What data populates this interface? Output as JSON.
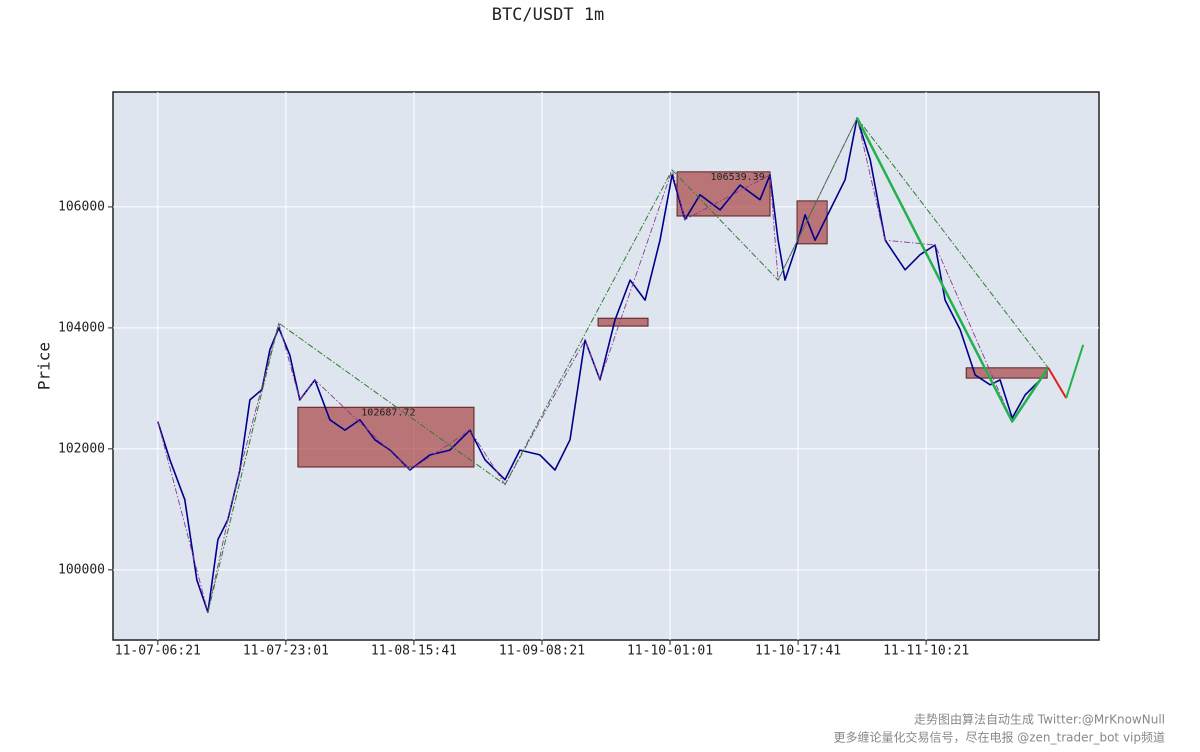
{
  "chart_data": {
    "type": "line",
    "title": "BTC/USDT 1m",
    "y_label": "Price",
    "xlim": [
      -350,
      7350
    ],
    "ylim": [
      98840,
      107900
    ],
    "xticks": [
      {
        "value": 0,
        "label": "11-07-06:21"
      },
      {
        "value": 1000,
        "label": "11-07-23:01"
      },
      {
        "value": 2000,
        "label": "11-08-15:41"
      },
      {
        "value": 3000,
        "label": "11-09-08:21"
      },
      {
        "value": 4000,
        "label": "11-10-01:01"
      },
      {
        "value": 5000,
        "label": "11-10-17:41"
      },
      {
        "value": 6000,
        "label": "11-11-10:21"
      }
    ],
    "yticks": [
      100000,
      102000,
      104000,
      106000
    ],
    "grid": true,
    "series": [
      {
        "color": "#00008b",
        "style": "solid",
        "width": 1.6,
        "x": [
          0,
          94,
          211,
          305,
          391,
          469,
          547,
          641,
          719,
          813,
          875,
          945,
          1031,
          1109,
          1227,
          1344,
          1461,
          1578,
          1695,
          1813,
          1969,
          2125,
          2281,
          2438,
          2555,
          2711,
          2828,
          2984,
          3102,
          3219,
          3336,
          3453,
          3570,
          3688,
          3805,
          3922,
          4016,
          4117,
          4234,
          4391,
          4547,
          4703,
          4781,
          4844,
          4898,
          4977,
          5055,
          5133,
          5250,
          5367,
          5461,
          5563,
          5680,
          5836,
          5953,
          6070,
          6148,
          6266,
          6383,
          6500,
          6578,
          6672,
          6773,
          6891,
          6953
        ],
        "values": [
          102450,
          101820,
          101160,
          99830,
          99300,
          100500,
          100830,
          101650,
          102810,
          102980,
          103640,
          104000,
          103550,
          102810,
          103140,
          102480,
          102310,
          102480,
          102150,
          101980,
          101650,
          101900,
          101980,
          102310,
          101820,
          101490,
          101980,
          101900,
          101650,
          102150,
          103800,
          103140,
          104130,
          104790,
          104460,
          105450,
          106530,
          105790,
          106200,
          105950,
          106360,
          106120,
          106530,
          105450,
          104790,
          105290,
          105870,
          105450,
          105950,
          106450,
          107470,
          106780,
          105450,
          104960,
          105210,
          105370,
          104460,
          103970,
          103220,
          103060,
          103140,
          102510,
          102890,
          103140,
          103340
        ]
      },
      {
        "color": "#8b3a8b",
        "style": "dashdot",
        "width": 0.9,
        "x": [
          0,
          391,
          547,
          641,
          945,
          1109,
          1227,
          1969,
          2438,
          2711,
          3336,
          3453,
          4016,
          4117,
          4781,
          4844,
          5461,
          5680,
          6070,
          6672,
          6953
        ],
        "values": [
          102450,
          99300,
          100830,
          101650,
          104080,
          102810,
          103140,
          101650,
          102310,
          101410,
          103800,
          103140,
          106610,
          105790,
          106530,
          104790,
          107470,
          105450,
          105370,
          102450,
          103340
        ]
      },
      {
        "color": "#2e7d32",
        "style": "dashdot",
        "width": 1,
        "x": [
          391,
          945,
          2711,
          4016,
          4844,
          5461,
          6953
        ],
        "values": [
          99300,
          104080,
          101410,
          106610,
          104790,
          107470,
          103340
        ]
      },
      {
        "color": "#22b14c",
        "style": "solid",
        "width": 2.5,
        "x": [
          5461,
          6672,
          6953
        ],
        "values": [
          107470,
          102450,
          103340
        ]
      },
      {
        "color": "#e02020",
        "style": "solid",
        "width": 2,
        "x": [
          6953,
          7094
        ],
        "values": [
          103340,
          102840
        ]
      },
      {
        "color": "#22b14c",
        "style": "solid",
        "width": 2,
        "x": [
          7094,
          7227
        ],
        "values": [
          102840,
          103720
        ]
      }
    ],
    "boxes": [
      {
        "x": [
          1094,
          2469
        ],
        "high": 102687.72,
        "low": 101700,
        "label": "102687.72"
      },
      {
        "x": [
          3438,
          3828
        ],
        "high": 104160,
        "low": 104030
      },
      {
        "x": [
          4055,
          4781
        ],
        "high": 106580,
        "low": 105850,
        "label": "106539.39"
      },
      {
        "x": [
          4992,
          5227
        ],
        "high": 106100,
        "low": 105390
      },
      {
        "x": [
          6313,
          6945
        ],
        "high": 103340,
        "low": 103170
      }
    ]
  },
  "footer": [
    "走势图由算法自动生成  Twitter:@MrKnowNull",
    "更多缠论量化交易信号，尽在电报 @zen_trader_bot vip频道"
  ]
}
